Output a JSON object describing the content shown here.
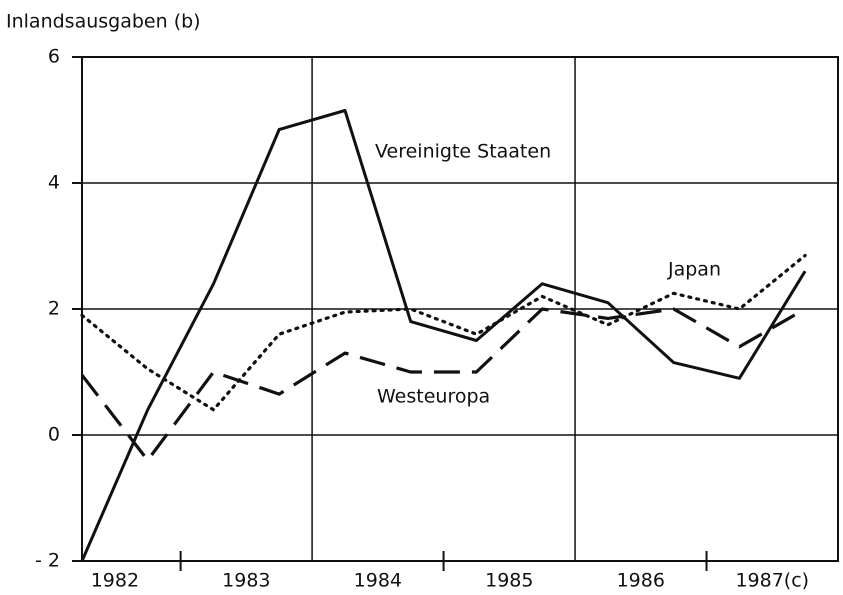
{
  "chart_data": {
    "type": "line",
    "title": "Inlandsausgaben (b)",
    "x": [
      1982.25,
      1982.75,
      1983.25,
      1983.75,
      1984.25,
      1984.75,
      1985.25,
      1985.75,
      1986.25,
      1986.75,
      1987.25,
      1987.75
    ],
    "series": [
      {
        "name": "Vereinigte Staaten",
        "color": "#111111",
        "dash": "solid",
        "values": [
          -2,
          0.4,
          2.4,
          4.85,
          5.15,
          1.8,
          1.5,
          2.4,
          2.1,
          1.15,
          0.9,
          2.6
        ]
      },
      {
        "name": "Japan",
        "color": "#111111",
        "dash": "dotted",
        "values": [
          1.9,
          1.05,
          0.4,
          1.6,
          1.95,
          2.0,
          1.6,
          2.2,
          1.75,
          2.25,
          2.0,
          2.85
        ]
      },
      {
        "name": "Westeuropa",
        "color": "#111111",
        "dash": "dashed",
        "values": [
          0.95,
          -0.4,
          1.0,
          0.65,
          1.3,
          1.0,
          1.0,
          2.0,
          1.85,
          2.0,
          1.4,
          2.0
        ]
      }
    ],
    "xlim": [
      1982.25,
      1988
    ],
    "xticks": [
      {
        "value": 1982.5,
        "label": "1982"
      },
      {
        "value": 1983.5,
        "label": "1983"
      },
      {
        "value": 1984.5,
        "label": "1984"
      },
      {
        "value": 1985.5,
        "label": "1985"
      },
      {
        "value": 1986.5,
        "label": "1986"
      },
      {
        "value": 1987.5,
        "label": "1987(c)"
      }
    ],
    "x_gridlines": [
      1984,
      1986
    ],
    "x_tick_marks": [
      1983,
      1985,
      1987
    ],
    "ylim": [
      -2,
      6
    ],
    "yticks": [
      {
        "value": -2,
        "label": "- 2"
      },
      0,
      2,
      4,
      6
    ],
    "grid": true
  }
}
